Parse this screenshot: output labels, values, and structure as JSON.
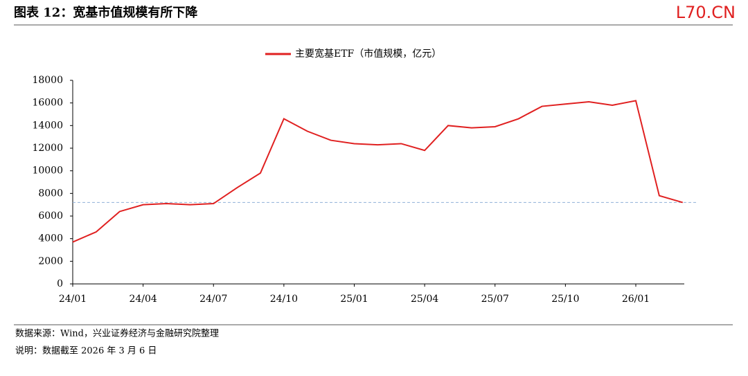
{
  "header": {
    "title": "图表 12：宽基市值规模有所下降",
    "brand": "L70.CN"
  },
  "chart_data": {
    "type": "line",
    "categories": [
      "24/01",
      null,
      null,
      "24/04",
      null,
      null,
      "24/07",
      null,
      null,
      "24/10",
      null,
      null,
      "25/01",
      null,
      null,
      "25/04",
      null,
      null,
      "25/07",
      null,
      null,
      "25/10",
      null,
      null,
      "26/01",
      null,
      null
    ],
    "series": [
      {
        "name": "主要宽基ETF（市值规模，亿元）",
        "color": "#e02020",
        "values": [
          3700,
          4600,
          6400,
          7000,
          7100,
          7000,
          7100,
          8500,
          9800,
          14600,
          13500,
          12700,
          12400,
          12300,
          12400,
          11800,
          14000,
          13800,
          13900,
          14600,
          15700,
          15900,
          16100,
          15800,
          16200,
          7800,
          7200
        ]
      }
    ],
    "reference_line": {
      "value": 7200,
      "color": "#8fb0d8"
    },
    "ylim": [
      0,
      18000
    ],
    "yticks": [
      0,
      2000,
      4000,
      6000,
      8000,
      10000,
      12000,
      14000,
      16000,
      18000
    ]
  },
  "footer": {
    "source": "数据来源：Wind，兴业证券经济与金融研究院整理",
    "note": "说明：数据截至 2026 年 3 月 6 日"
  }
}
